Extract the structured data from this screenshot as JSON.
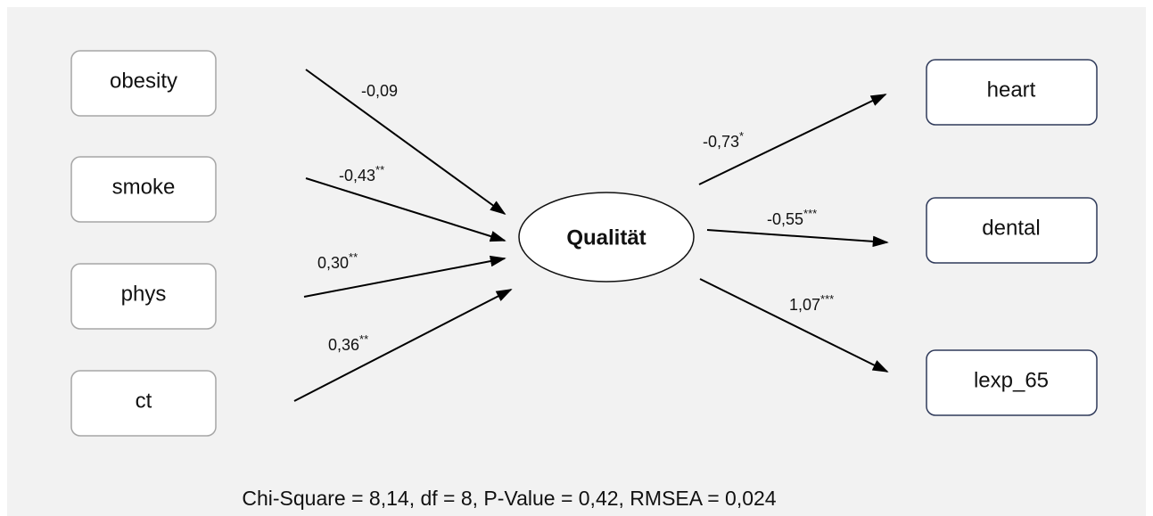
{
  "left_nodes": [
    {
      "label": "obesity"
    },
    {
      "label": "smoke"
    },
    {
      "label": "phys"
    },
    {
      "label": "ct"
    }
  ],
  "center_node": {
    "label": "Qualität"
  },
  "right_nodes": [
    {
      "label": "heart"
    },
    {
      "label": "dental"
    },
    {
      "label": "lexp_65"
    }
  ],
  "edges": [
    {
      "coefficient": "-0,09"
    },
    {
      "coefficient": "-0,43",
      "significance": "**"
    },
    {
      "coefficient": "0,30",
      "significance": "**"
    },
    {
      "coefficient": "0,36",
      "significance": "**"
    },
    {
      "coefficient": "-0,73",
      "significance": "*"
    },
    {
      "coefficient": "-0,55",
      "significance": "***"
    },
    {
      "coefficient": "1,07",
      "significance": "***"
    }
  ],
  "fit_statistics": "Chi-Square = 8,14, df = 8, P-Value = 0,42, RMSEA = 0,024"
}
